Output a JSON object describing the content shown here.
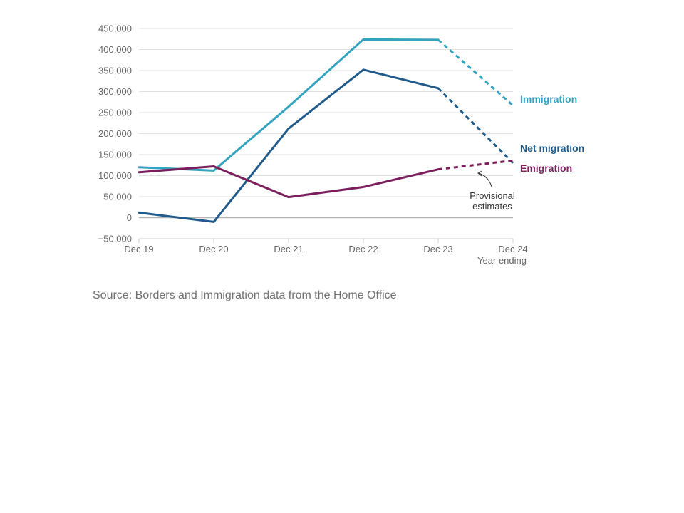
{
  "chart_data": {
    "type": "line",
    "x": [
      "Dec 19",
      "Dec 20",
      "Dec 21",
      "Dec 22",
      "Dec 23",
      "Dec 24"
    ],
    "xlabel": "Year ending",
    "ylabel": "",
    "ylim": [
      -50000,
      450000
    ],
    "yticks": [
      -50000,
      0,
      50000,
      100000,
      150000,
      200000,
      250000,
      300000,
      350000,
      400000,
      450000
    ],
    "ytick_labels": [
      "−50,000",
      "0",
      "50,000",
      "100,000",
      "150,000",
      "200,000",
      "250,000",
      "300,000",
      "350,000",
      "400,000",
      "450,000"
    ],
    "grid": true,
    "provisional_from_index": 4,
    "series": [
      {
        "name": "Immigration",
        "color": "#33a3bf",
        "values": [
          120000,
          112000,
          264000,
          424000,
          423000,
          267000
        ]
      },
      {
        "name": "Net migration",
        "color": "#1f5a8a",
        "values": [
          12000,
          -10000,
          212000,
          352000,
          308000,
          130000
        ]
      },
      {
        "name": "Emigration",
        "color": "#7b1f5c",
        "values": [
          108000,
          122000,
          49000,
          73000,
          115000,
          136000
        ]
      }
    ],
    "annotations": [
      {
        "text_lines": [
          "Provisional",
          "estimates"
        ]
      }
    ]
  },
  "source": "Source: Borders and Immigration data from the Home Office"
}
